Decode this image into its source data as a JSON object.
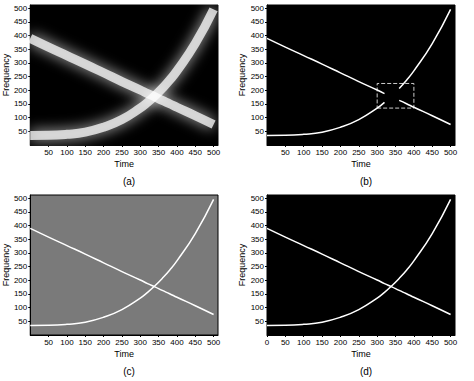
{
  "chart_data": [
    {
      "type": "line",
      "caption": "(a)",
      "xlabel": "Time",
      "ylabel": "Frequency",
      "xlim": [
        0,
        512
      ],
      "ylim": [
        0,
        512
      ],
      "xticks": [
        50,
        100,
        150,
        200,
        250,
        300,
        350,
        400,
        450,
        500
      ],
      "yticks": [
        50,
        100,
        150,
        200,
        250,
        300,
        350,
        400,
        450,
        500
      ],
      "x": [
        0,
        50,
        100,
        150,
        200,
        250,
        300,
        320,
        340,
        360,
        380,
        400,
        450,
        500
      ],
      "series": [
        {
          "color": "#ffffff",
          "line_style": "blurred",
          "values": [
            390,
            358,
            327,
            296,
            264,
            232,
            201,
            188,
            176,
            163,
            151,
            138,
            107,
            75
          ]
        },
        {
          "color": "#ffffff",
          "line_style": "blurred",
          "values": [
            35,
            35.5,
            39,
            47,
            65,
            93,
            135,
            156,
            180,
            207,
            237,
            271,
            371,
            496
          ]
        }
      ]
    },
    {
      "type": "line",
      "caption": "(b)",
      "xlabel": "Time",
      "ylabel": "Frequency",
      "xlim": [
        0,
        512
      ],
      "ylim": [
        0,
        512
      ],
      "xticks": [
        50,
        100,
        150,
        200,
        250,
        300,
        350,
        400,
        450,
        500
      ],
      "yticks": [
        50,
        100,
        150,
        200,
        250,
        300,
        350,
        400,
        450,
        500
      ],
      "x": [
        0,
        50,
        100,
        150,
        200,
        250,
        300,
        320,
        340,
        360,
        380,
        400,
        450,
        500
      ],
      "highlight": {
        "x": [
          300,
          400
        ],
        "y": [
          135,
          225
        ]
      },
      "series": [
        {
          "color": "#ffffff",
          "line_style": "solid",
          "values": [
            390,
            358,
            327,
            296,
            264,
            232,
            201,
            188,
            null,
            163,
            151,
            138,
            107,
            75
          ]
        },
        {
          "color": "#ffffff",
          "line_style": "solid",
          "values": [
            35,
            35.5,
            39,
            47,
            65,
            93,
            135,
            156,
            null,
            207,
            237,
            271,
            371,
            496
          ]
        }
      ]
    },
    {
      "type": "line",
      "caption": "(c)",
      "xlabel": "Time",
      "ylabel": "Frequency",
      "xlim": [
        0,
        512
      ],
      "ylim": [
        0,
        512
      ],
      "xticks": [
        50,
        100,
        150,
        200,
        250,
        300,
        350,
        400,
        450,
        500
      ],
      "yticks": [
        50,
        100,
        150,
        200,
        250,
        300,
        350,
        400,
        450,
        500
      ],
      "x": [
        0,
        50,
        100,
        150,
        200,
        250,
        300,
        320,
        340,
        360,
        380,
        400,
        450,
        500
      ],
      "series": [
        {
          "color": "#ffffff",
          "line_style": "solid",
          "values": [
            390,
            358,
            327,
            296,
            264,
            232,
            201,
            188,
            176,
            163,
            151,
            138,
            107,
            75
          ]
        },
        {
          "color": "#ffffff",
          "line_style": "solid",
          "values": [
            35,
            35.5,
            39,
            47,
            65,
            93,
            135,
            156,
            180,
            207,
            237,
            271,
            371,
            496
          ]
        }
      ]
    },
    {
      "type": "line",
      "caption": "(d)",
      "xlabel": "Time",
      "ylabel": "Frequency",
      "xlim": [
        0,
        512
      ],
      "ylim": [
        0,
        512
      ],
      "xticks": [
        0,
        50,
        100,
        150,
        200,
        250,
        300,
        350,
        400,
        450,
        500
      ],
      "yticks": [
        50,
        100,
        150,
        200,
        250,
        300,
        350,
        400,
        450,
        500
      ],
      "x": [
        0,
        50,
        100,
        150,
        200,
        250,
        300,
        320,
        340,
        360,
        380,
        400,
        450,
        500
      ],
      "series": [
        {
          "color": "#ffffff",
          "line_style": "solid",
          "values": [
            390,
            358,
            327,
            296,
            264,
            232,
            201,
            188,
            176,
            163,
            151,
            138,
            107,
            75
          ]
        },
        {
          "color": "#ffffff",
          "line_style": "solid",
          "values": [
            35,
            35.5,
            39,
            47,
            65,
            93,
            135,
            156,
            180,
            207,
            237,
            271,
            371,
            496
          ]
        }
      ]
    }
  ]
}
